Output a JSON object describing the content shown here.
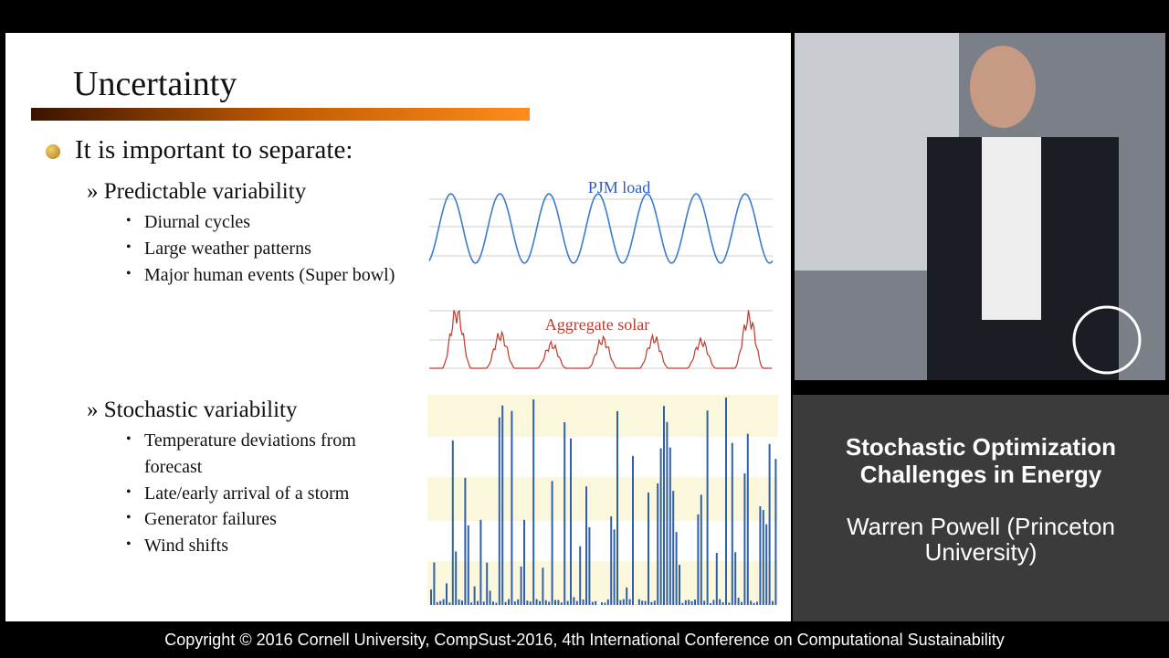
{
  "slide": {
    "title": "Uncertainty",
    "bullet": "It is important to separate:",
    "sections": [
      {
        "heading": "» Predictable variability",
        "items": [
          "Diurnal cycles",
          "Large weather patterns",
          "Major human events (Super bowl)"
        ]
      },
      {
        "heading": "» Stochastic variability",
        "items": [
          "Temperature deviations from forecast",
          "Late/early arrival of a storm",
          "Generator failures",
          "Wind shifts"
        ]
      }
    ],
    "chart_labels": [
      "PJM load",
      "Aggregate solar"
    ]
  },
  "sidebar": {
    "talk_title": [
      "Stochastic Optimization",
      "Challenges in Energy"
    ],
    "speaker": [
      "Warren Powell (Princeton",
      "University)"
    ]
  },
  "footer": "Copyright © 2016 Cornell University, CompSust-2016, 4th International Conference on Computational Sustainability"
}
